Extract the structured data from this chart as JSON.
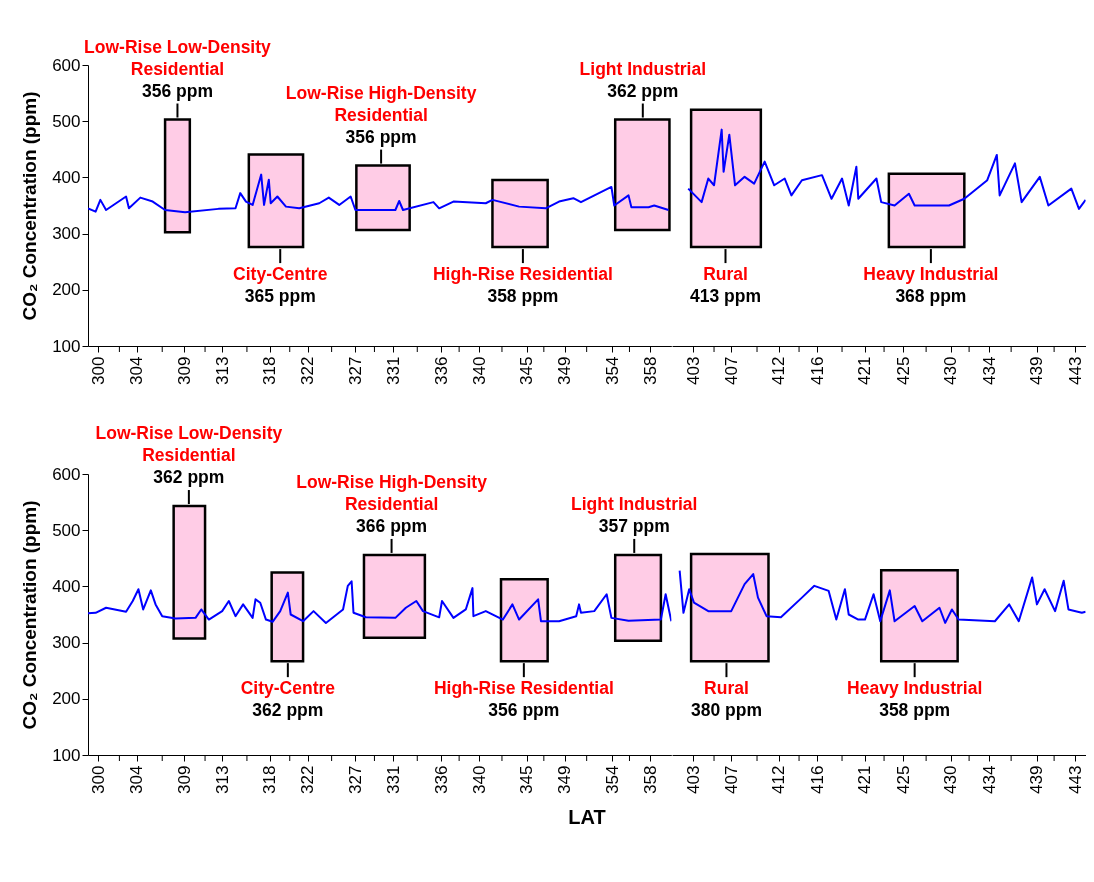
{
  "chart_data": [
    {
      "type": "line",
      "ylabel": "CO₂ Concentration (ppm)",
      "xlim": [
        298.9,
        360.2
      ],
      "ylim": [
        100,
        600
      ],
      "yticks": [
        100,
        200,
        300,
        400,
        500,
        600
      ],
      "xticks": [
        300,
        {
          "value": 302.2,
          "label": null
        },
        304,
        {
          "value": 306.7,
          "label": null
        },
        309,
        {
          "value": 311.2,
          "label": null
        },
        313,
        {
          "value": 315.6,
          "label": null
        },
        318,
        {
          "value": 320.1,
          "label": null
        },
        322,
        {
          "value": 324.5,
          "label": null
        },
        327,
        {
          "value": 329.0,
          "label": null
        },
        331,
        {
          "value": 333.5,
          "label": null
        },
        336,
        {
          "value": 337.9,
          "label": null
        },
        340,
        {
          "value": 342.4,
          "label": null
        },
        345,
        {
          "value": 346.8,
          "label": null
        },
        349,
        {
          "value": 351.3,
          "label": null
        },
        354,
        {
          "value": 355.8,
          "label": null
        },
        358
      ],
      "series": [
        {
          "color": "#0000ff",
          "x": [
            298.9,
            299.7,
            300.2,
            300.8,
            302.9,
            303.2,
            304.4,
            305.7,
            307.0,
            309.1,
            312.6,
            314.4,
            314.9,
            315.5,
            316.2,
            317.1,
            317.4,
            317.9,
            318.1,
            318.8,
            319.7,
            321.1,
            323.2,
            324.2,
            325.3,
            326.5,
            327.0,
            331.2,
            331.6,
            332.0,
            335.2,
            335.8,
            337.3,
            340.7,
            341.4,
            344.2,
            347.0,
            348.4,
            349.9,
            350.7,
            353.9,
            354.2,
            355.7,
            356.0,
            357.8,
            358.4,
            359.9
          ],
          "values": [
            345,
            339,
            360,
            342,
            366,
            345,
            364,
            357,
            342,
            338,
            344,
            345,
            372,
            357,
            351,
            405,
            351,
            396,
            354,
            366,
            348,
            345,
            354,
            364,
            351,
            366,
            342,
            342,
            358,
            342,
            356,
            345,
            357,
            354,
            360,
            348,
            345,
            357,
            363,
            356,
            383,
            350,
            368,
            347,
            347,
            350,
            342
          ]
        }
      ],
      "bands": [
        {
          "axis": "x",
          "from": 307.0,
          "to": 309.6,
          "color": "#ffcce6"
        },
        {
          "axis": "x",
          "from": 315.8,
          "to": 321.5,
          "color": "#ffcce6"
        },
        {
          "axis": "x",
          "from": 327.1,
          "to": 332.7,
          "color": "#ffcce6"
        },
        {
          "axis": "x",
          "from": 341.4,
          "to": 347.2,
          "color": "#ffcce6"
        },
        {
          "axis": "x",
          "from": 354.3,
          "to": 360.0,
          "color": "#ffcce6"
        }
      ],
      "annotations": [
        {
          "text": "Low-Rise Low-Density\nResidential",
          "x": 308.3,
          "y": 503
        },
        {
          "text": "356 ppm",
          "x": 308.3,
          "y": 503
        },
        {
          "text": "City-Centre",
          "x": 319.1,
          "y": 276
        },
        {
          "text": "365 ppm",
          "x": 319.1,
          "y": 276
        },
        {
          "text": "Low-Rise High-Density\nResidential",
          "x": 329.7,
          "y": 421
        },
        {
          "text": "356 ppm",
          "x": 329.7,
          "y": 421
        },
        {
          "text": "High-Rise Residential",
          "x": 344.6,
          "y": 276
        },
        {
          "text": "358 ppm",
          "x": 344.6,
          "y": 276
        },
        {
          "text": "Light Industrial",
          "x": 357.2,
          "y": 503
        },
        {
          "text": "362 ppm",
          "x": 357.2,
          "y": 503
        }
      ]
    },
    {
      "type": "line",
      "tick_labels": "x",
      "xlim": [
        400.8,
        444.1
      ],
      "ylim": [
        100,
        600
      ],
      "xticks": [
        {
          "value": 405.2,
          "label": null
        },
        407,
        {
          "value": 409.7,
          "label": null
        },
        412,
        {
          "value": 414.1,
          "label": null
        },
        416,
        {
          "value": 418.6,
          "label": null
        },
        421,
        {
          "value": 423.0,
          "label": null
        },
        425,
        {
          "value": 427.4,
          "label": null
        },
        430,
        {
          "value": 431.9,
          "label": null
        },
        434,
        {
          "value": 436.3,
          "label": null
        },
        439,
        {
          "value": 440.8,
          "label": null
        },
        443,
        403
      ],
      "series": [
        {
          "color": "#0000ff",
          "x": [
            402.5,
            403.9,
            404.6,
            405.2,
            406.0,
            406.2,
            406.8,
            407.4,
            408.4,
            409.4,
            410.5,
            411.5,
            412.6,
            413.3,
            414.4,
            416.5,
            417.5,
            418.6,
            419.3,
            420.1,
            420.3,
            422.2,
            422.7,
            424.1,
            425.6,
            426.2,
            429.8,
            431.4,
            433.8,
            434.8,
            435.1,
            436.7,
            437.4,
            439.3,
            440.2,
            442.6,
            443.4,
            444.1
          ],
          "values": [
            380,
            356,
            398,
            386,
            485,
            410,
            476,
            386,
            401,
            389,
            428,
            386,
            398,
            368,
            395,
            404,
            362,
            398,
            350,
            419,
            362,
            398,
            356,
            350,
            371,
            350,
            350,
            362,
            395,
            440,
            368,
            425,
            356,
            401,
            350,
            380,
            344,
            360
          ]
        }
      ],
      "bands": [
        {
          "axis": "x",
          "from": 402.8,
          "to": 410.1,
          "color": "#ffcce6"
        },
        {
          "axis": "x",
          "from": 423.5,
          "to": 431.4,
          "color": "#ffcce6"
        }
      ],
      "annotations": [
        {
          "text": "Rural",
          "x": 406.4,
          "y": 276
        },
        {
          "text": "413 ppm",
          "x": 406.4,
          "y": 276
        },
        {
          "text": "Heavy Industrial",
          "x": 427.9,
          "y": 276
        },
        {
          "text": "368 ppm",
          "x": 427.9,
          "y": 276
        }
      ]
    },
    {
      "type": "line",
      "ylabel": "CO₂ Concentration (ppm)",
      "xlabel": "LAT",
      "xlim": [
        298.9,
        360.2
      ],
      "ylim": [
        100,
        600
      ],
      "yticks": [
        100,
        200,
        300,
        400,
        500,
        600
      ],
      "xticks": [
        300,
        {
          "value": 302.2,
          "label": null
        },
        304,
        {
          "value": 306.7,
          "label": null
        },
        309,
        {
          "value": 311.2,
          "label": null
        },
        313,
        {
          "value": 315.6,
          "label": null
        },
        318,
        {
          "value": 320.1,
          "label": null
        },
        322,
        {
          "value": 324.5,
          "label": null
        },
        327,
        {
          "value": 329.0,
          "label": null
        },
        331,
        {
          "value": 333.5,
          "label": null
        },
        336,
        {
          "value": 337.9,
          "label": null
        },
        340,
        {
          "value": 342.4,
          "label": null
        },
        345,
        {
          "value": 346.8,
          "label": null
        },
        349,
        {
          "value": 351.3,
          "label": null
        },
        354,
        {
          "value": 355.8,
          "label": null
        },
        358
      ],
      "series": [
        {
          "color": "#0000ff",
          "x": [
            298.9,
            299.7,
            300.8,
            302.9,
            303.6,
            304.2,
            304.7,
            305.5,
            306.0,
            306.7,
            308.1,
            310.2,
            310.8,
            311.6,
            313.0,
            313.7,
            314.4,
            315.2,
            316.2,
            316.5,
            317.0,
            317.6,
            318.3,
            319.1,
            319.9,
            320.2,
            321.5,
            322.6,
            323.9,
            325.7,
            326.2,
            326.6,
            326.8,
            328.1,
            331.2,
            332.3,
            333.4,
            334.1,
            335.8,
            336.1,
            337.3,
            338.6,
            339.3,
            339.4,
            340.7,
            342.5,
            343.5,
            344.2,
            346.2,
            346.5,
            348.4,
            350.2,
            350.5,
            350.7,
            352.1,
            353.4,
            353.9,
            355.7,
            359.1,
            359.6,
            360.2
          ],
          "values": [
            352,
            353,
            362,
            355,
            374,
            395,
            359,
            393,
            368,
            347,
            343,
            344,
            359,
            341,
            356,
            374,
            347,
            368,
            344,
            377,
            371,
            341,
            337,
            356,
            389,
            350,
            338,
            356,
            335,
            359,
            401,
            409,
            353,
            345,
            344,
            362,
            374,
            356,
            345,
            374,
            344,
            359,
            397,
            347,
            356,
            341,
            368,
            341,
            377,
            338,
            338,
            347,
            368,
            353,
            356,
            386,
            344,
            339,
            341,
            386,
            338
          ]
        }
      ],
      "bands": [
        {
          "axis": "x",
          "from": 307.9,
          "to": 311.2,
          "color": "#ffcce6"
        },
        {
          "axis": "x",
          "from": 318.2,
          "to": 321.5,
          "color": "#ffcce6"
        },
        {
          "axis": "x",
          "from": 327.9,
          "to": 334.3,
          "color": "#ffcce6"
        },
        {
          "axis": "x",
          "from": 342.3,
          "to": 347.2,
          "color": "#ffcce6"
        },
        {
          "axis": "x",
          "from": 354.3,
          "to": 359.1,
          "color": "#ffcce6"
        }
      ],
      "annotations": [
        {
          "text": "Low-Rise Low-Density\nResidential",
          "x": 309.5,
          "y": 543
        },
        {
          "text": "362 ppm",
          "x": 309.5,
          "y": 543
        },
        {
          "text": "City-Centre",
          "x": 319.9,
          "y": 267
        },
        {
          "text": "362 ppm",
          "x": 319.9,
          "y": 267
        },
        {
          "text": "Low-Rise High-Density\nResidential",
          "x": 330.8,
          "y": 456
        },
        {
          "text": "366 ppm",
          "x": 330.8,
          "y": 456
        },
        {
          "text": "High-Rise Residential",
          "x": 344.7,
          "y": 267
        },
        {
          "text": "356 ppm",
          "x": 344.7,
          "y": 267
        },
        {
          "text": "Light Industrial",
          "x": 356.3,
          "y": 456
        },
        {
          "text": "357 ppm",
          "x": 356.3,
          "y": 456
        }
      ]
    },
    {
      "type": "line",
      "tick_labels": "x",
      "xlim": [
        400.8,
        444.1
      ],
      "ylim": [
        100,
        600
      ],
      "xticks": [
        403,
        {
          "value": 405.2,
          "label": null
        },
        407,
        {
          "value": 409.7,
          "label": null
        },
        412,
        {
          "value": 414.1,
          "label": null
        },
        416,
        {
          "value": 418.6,
          "label": null
        },
        421,
        {
          "value": 423.0,
          "label": null
        },
        425,
        {
          "value": 427.4,
          "label": null
        },
        430,
        {
          "value": 431.9,
          "label": null
        },
        434,
        {
          "value": 436.3,
          "label": null
        },
        439,
        {
          "value": 440.8,
          "label": null
        },
        443
      ],
      "series": [
        {
          "color": "#0000ff",
          "x": [
            401.6,
            402.0,
            402.6,
            403.1,
            404.6,
            407.0,
            408.4,
            409.3,
            409.8,
            410.7,
            412.2,
            414.4,
            415.7,
            417.2,
            418.0,
            418.9,
            419.3,
            420.3,
            421.0,
            421.9,
            422.6,
            423.6,
            424.1,
            426.2,
            427.0,
            428.8,
            429.4,
            430.1,
            430.8,
            434.6,
            436.1,
            437.1,
            438.5,
            439.0,
            439.8,
            440.9,
            441.8,
            442.3,
            443.7,
            444.1
          ],
          "values": [
            428,
            353,
            395,
            371,
            356,
            356,
            404,
            422,
            380,
            347,
            345,
            380,
            401,
            392,
            341,
            395,
            350,
            341,
            341,
            386,
            338,
            393,
            338,
            365,
            338,
            362,
            335,
            359,
            341,
            338,
            368,
            338,
            416,
            368,
            395,
            356,
            410,
            359,
            353,
            355
          ]
        }
      ],
      "bands": [
        {
          "axis": "x",
          "from": 402.8,
          "to": 410.9,
          "color": "#ffcce6"
        },
        {
          "axis": "x",
          "from": 422.7,
          "to": 430.7,
          "color": "#ffcce6"
        }
      ],
      "annotations": [
        {
          "text": "Rural",
          "x": 406.5,
          "y": 267
        },
        {
          "text": "380 ppm",
          "x": 406.5,
          "y": 267
        },
        {
          "text": "Heavy Industrial",
          "x": 426.2,
          "y": 267
        },
        {
          "text": "358 ppm",
          "x": 426.2,
          "y": 267
        }
      ]
    }
  ]
}
